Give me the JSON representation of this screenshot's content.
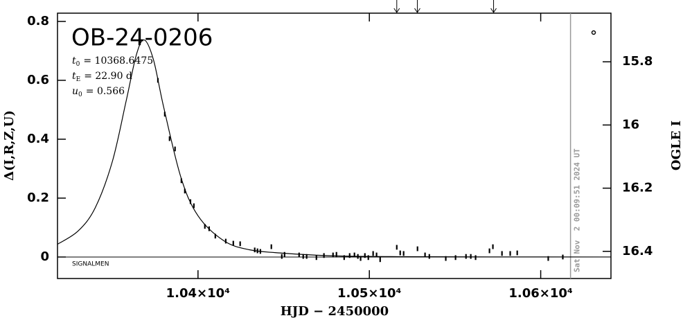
{
  "chart_data": {
    "type": "scatter",
    "title": "OB-24-0206",
    "parameters": [
      {
        "symbol": "t",
        "subscript": "0",
        "text": "= 10368.6475"
      },
      {
        "symbol": "t",
        "subscript": "E",
        "text": "= 22.90 d"
      },
      {
        "symbol": "u",
        "subscript": "0",
        "text": "= 0.566"
      }
    ],
    "credit": "SIGNALMEN",
    "x_label": "HJD − 2450000",
    "y_label": "Δ(I,R,Z,U)",
    "y2_label": "OGLE I",
    "xlim": [
      10318,
      10641
    ],
    "ylim": [
      -0.073,
      0.828
    ],
    "y2lim": [
      16.486,
      15.646
    ],
    "xticks": [
      {
        "value": 10400,
        "label": "1.04×10⁴"
      },
      {
        "value": 10500,
        "label": "1.05×10⁴"
      },
      {
        "value": 10600,
        "label": "1.06×10⁴"
      }
    ],
    "yticks": [
      0,
      0.2,
      0.4,
      0.6,
      0.8
    ],
    "y2ticks": [
      15.8,
      16,
      16.2,
      16.4
    ],
    "color": "#000000",
    "x": [
      10376.6,
      10380.6,
      10383.4,
      10386.6,
      10390.3,
      10392.3,
      10395.6,
      10397.6,
      10404.0,
      10406.5,
      10410.1,
      10416.2,
      10420.6,
      10424.6,
      10433.1,
      10434.7,
      10436.4,
      10442.8,
      10448.9,
      10450.5,
      10459.0,
      10461.4,
      10463.4,
      10469.1,
      10473.5,
      10478.8,
      10480.8,
      10485.3,
      10488.5,
      10491.3,
      10493.3,
      10494.9,
      10497.4,
      10499.4,
      10502.2,
      10504.2,
      10506.3,
      10516.0,
      10518.0,
      10520.0,
      10528.1,
      10532.5,
      10535.0,
      10544.6,
      10550.3,
      10556.4,
      10559.2,
      10562.0,
      10570.1,
      10572.1,
      10577.4,
      10582.2,
      10586.3,
      10604.4,
      10612.9
    ],
    "values": [
      0.6,
      0.485,
      0.402,
      0.367,
      0.259,
      0.224,
      0.188,
      0.174,
      0.104,
      0.096,
      0.071,
      0.054,
      0.047,
      0.045,
      0.024,
      0.021,
      0.019,
      0.035,
      0.002,
      0.009,
      0.007,
      0.002,
      0.002,
      -0.002,
      0.005,
      0.007,
      0.009,
      -0.002,
      0.005,
      0.007,
      0.002,
      -0.005,
      0.005,
      -0.002,
      0.012,
      0.007,
      -0.009,
      0.033,
      0.014,
      0.012,
      0.028,
      0.007,
      0.002,
      -0.005,
      -0.002,
      0.002,
      0.002,
      -0.002,
      0.021,
      0.035,
      0.012,
      0.012,
      0.014,
      -0.005,
      0.0
    ],
    "errors": [
      0.008,
      0.008,
      0.008,
      0.008,
      0.008,
      0.008,
      0.008,
      0.008,
      0.008,
      0.008,
      0.008,
      0.008,
      0.008,
      0.008,
      0.008,
      0.008,
      0.008,
      0.008,
      0.008,
      0.008,
      0.008,
      0.008,
      0.008,
      0.008,
      0.008,
      0.008,
      0.008,
      0.008,
      0.008,
      0.008,
      0.008,
      0.008,
      0.008,
      0.008,
      0.008,
      0.008,
      0.008,
      0.008,
      0.008,
      0.008,
      0.008,
      0.008,
      0.008,
      0.008,
      0.008,
      0.008,
      0.008,
      0.008,
      0.008,
      0.008,
      0.008,
      0.008,
      0.008,
      0.008,
      0.008
    ],
    "model": {
      "x": [
        10318,
        10330,
        10340,
        10350,
        10358,
        10364,
        10368.65,
        10374,
        10380,
        10390,
        10400,
        10415,
        10430,
        10450,
        10480,
        10520,
        10570,
        10641
      ],
      "values": [
        0.0434,
        0.0882,
        0.167,
        0.324,
        0.528,
        0.686,
        0.737,
        0.67,
        0.508,
        0.271,
        0.14,
        0.0555,
        0.0246,
        0.0129,
        0.00377,
        0.00112,
        0.00036,
        0.0001
      ]
    },
    "now_line": {
      "x": 10617.4,
      "label": "Sat Nov  2 00:09:51 2024 UT"
    },
    "alert_arrows": [
      10516,
      10528,
      10572.5
    ]
  }
}
